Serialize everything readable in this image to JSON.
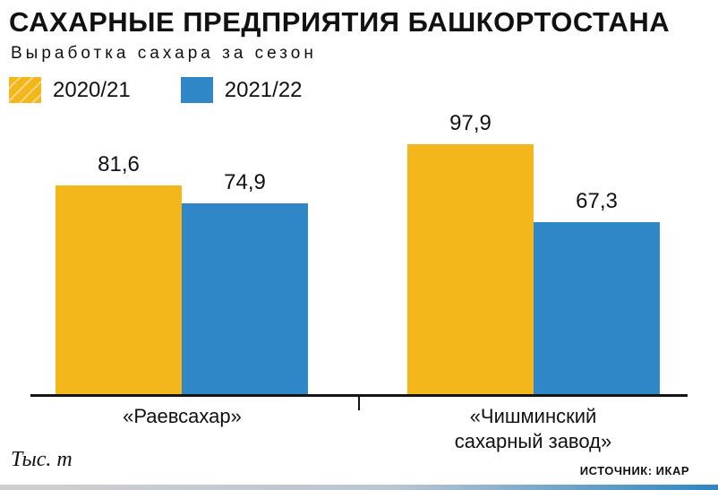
{
  "title": "САХАРНЫЕ ПРЕДПРИЯТИЯ БАШКОРТОСТАНА",
  "subtitle": "Выработка сахара за сезон",
  "legend": {
    "items": [
      {
        "label": "2020/21",
        "color": "#f3b71b",
        "hatched": true
      },
      {
        "label": "2021/22",
        "color": "#2f87c8",
        "hatched": false
      }
    ]
  },
  "chart_data": {
    "type": "bar",
    "title": "САХАРНЫЕ ПРЕДПРИЯТИЯ БАШКОРТОСТАНА",
    "subtitle": "Выработка сахара за сезон",
    "unit": "Тыс. т",
    "categories": [
      "«Раевсахар»",
      "«Чишминский сахарный завод»"
    ],
    "series": [
      {
        "name": "2020/21",
        "color": "#f3b71b",
        "hatched": true,
        "values": [
          81.6,
          97.9
        ],
        "labels": [
          "81,6",
          "97,9"
        ]
      },
      {
        "name": "2021/22",
        "color": "#2f87c8",
        "hatched": false,
        "values": [
          74.9,
          67.3
        ],
        "labels": [
          "74,9",
          "67,3"
        ]
      }
    ],
    "ylim": [
      0,
      105
    ],
    "grid": false,
    "legend_position": "top-left"
  },
  "footer": {
    "unit_label": "Тыс. т",
    "source_label": "ИСТОЧНИК: ИКАР"
  }
}
